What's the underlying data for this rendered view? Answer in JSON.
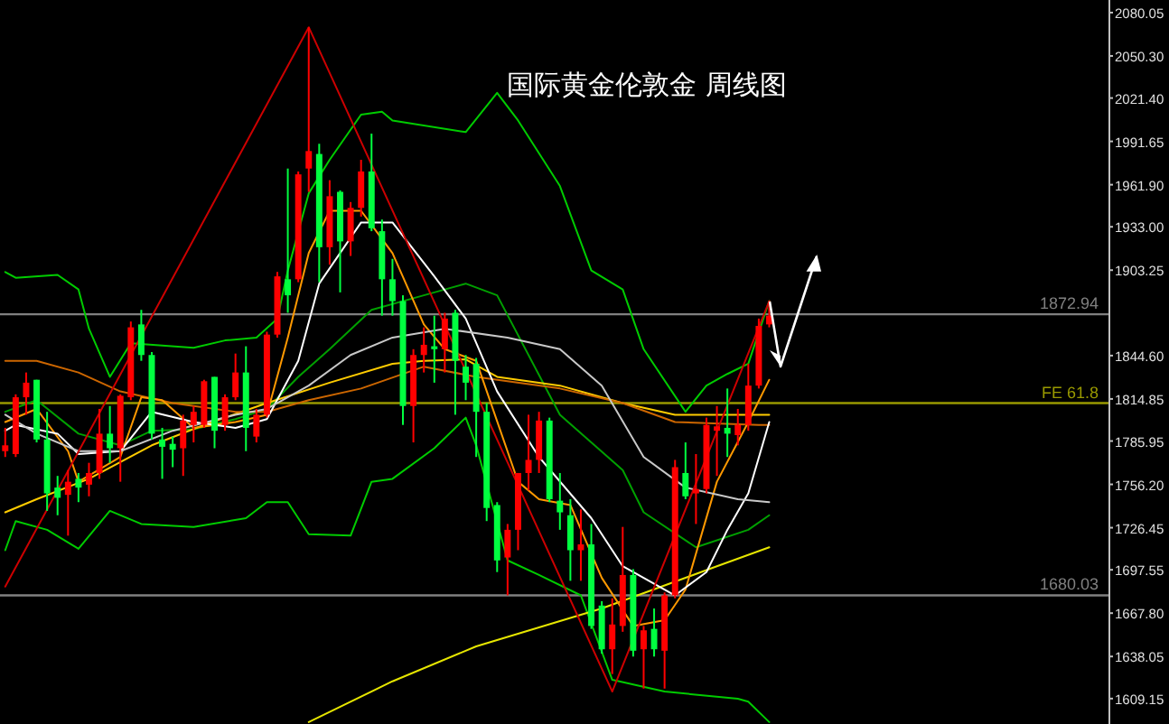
{
  "chart_data": {
    "type": "candlestick",
    "title": "国际黄金伦敦金  周线图",
    "categories": [
      null,
      null,
      null,
      null,
      null,
      null,
      null,
      null,
      null,
      null,
      null,
      null,
      null,
      null,
      null,
      null,
      null,
      null,
      null,
      null,
      null,
      null,
      null,
      null,
      null,
      null,
      null,
      null,
      null,
      null,
      null,
      null,
      null,
      null,
      null,
      null,
      null,
      null,
      null,
      null,
      null,
      null,
      null,
      null,
      null,
      null,
      null,
      null,
      null,
      null,
      null,
      null,
      null,
      null,
      null,
      null,
      null,
      null,
      null,
      null,
      null,
      null,
      null,
      null,
      null,
      null,
      null,
      null,
      null,
      null,
      null,
      null,
      null,
      null,
      null,
      null,
      null,
      null,
      null,
      null,
      null,
      null,
      null,
      null,
      null,
      null,
      null,
      null,
      null,
      null,
      null,
      null,
      null,
      null,
      null,
      null,
      null,
      null,
      null,
      null,
      null,
      null,
      null,
      null,
      null,
      null
    ],
    "ohlc": [
      [
        1779,
        1795,
        1775,
        1783
      ],
      [
        1777,
        1818,
        1775,
        1816
      ],
      [
        1816,
        1833,
        1804,
        1826
      ],
      [
        1828,
        1828,
        1785,
        1787
      ],
      [
        1787,
        1806,
        1738,
        1750
      ],
      [
        1754,
        1762,
        1735,
        1747
      ],
      [
        1749,
        1766,
        1721,
        1758
      ],
      [
        1760,
        1764,
        1744,
        1754
      ],
      [
        1756,
        1771,
        1748,
        1764
      ],
      [
        1764,
        1808,
        1760,
        1791
      ],
      [
        1791,
        1810,
        1771,
        1781
      ],
      [
        1781,
        1818,
        1758,
        1817
      ],
      [
        1816,
        1868,
        1814,
        1864
      ],
      [
        1866,
        1876,
        1841,
        1845
      ],
      [
        1845,
        1847,
        1787,
        1791
      ],
      [
        1787,
        1795,
        1760,
        1782
      ],
      [
        1784,
        1789,
        1768,
        1780
      ],
      [
        1781,
        1804,
        1762,
        1800
      ],
      [
        1797,
        1810,
        1785,
        1806
      ],
      [
        1797,
        1828,
        1795,
        1827
      ],
      [
        1830,
        1830,
        1781,
        1793
      ],
      [
        1797,
        1818,
        1793,
        1816
      ],
      [
        1816,
        1846,
        1814,
        1833
      ],
      [
        1833,
        1851,
        1779,
        1795
      ],
      [
        1789,
        1808,
        1785,
        1804
      ],
      [
        1804,
        1861,
        1802,
        1859
      ],
      [
        1859,
        1902,
        1857,
        1899
      ],
      [
        1897,
        1973,
        1874,
        1886
      ],
      [
        1897,
        1971,
        1895,
        1969
      ],
      [
        1973,
        2070,
        1957,
        1985
      ],
      [
        1983,
        1990,
        1895,
        1919
      ],
      [
        1919,
        1965,
        1907,
        1954
      ],
      [
        1957,
        1958,
        1888,
        1923
      ],
      [
        1923,
        1950,
        1913,
        1946
      ],
      [
        1946,
        1979,
        1940,
        1971
      ],
      [
        1971,
        1997,
        1930,
        1932
      ],
      [
        1930,
        1938,
        1872,
        1897
      ],
      [
        1897,
        1911,
        1872,
        1882
      ],
      [
        1882,
        1886,
        1797,
        1810
      ],
      [
        1810,
        1849,
        1785,
        1845
      ],
      [
        1845,
        1864,
        1833,
        1852
      ],
      [
        1851,
        1872,
        1826,
        1849
      ],
      [
        1849,
        1874,
        1833,
        1870
      ],
      [
        1874,
        1876,
        1804,
        1841
      ],
      [
        1837,
        1845,
        1814,
        1826
      ],
      [
        1839,
        1843,
        1775,
        1806
      ],
      [
        1806,
        1812,
        1731,
        1740
      ],
      [
        1742,
        1744,
        1696,
        1704
      ],
      [
        1706,
        1729,
        1680,
        1725
      ],
      [
        1725,
        1764,
        1711,
        1764
      ],
      [
        1764,
        1804,
        1752,
        1773
      ],
      [
        1773,
        1806,
        1764,
        1800
      ],
      [
        1800,
        1802,
        1744,
        1746
      ],
      [
        1745,
        1764,
        1725,
        1737
      ],
      [
        1735,
        1746,
        1690,
        1711
      ],
      [
        1711,
        1739,
        1690,
        1715
      ],
      [
        1715,
        1729,
        1657,
        1659
      ],
      [
        1673,
        1676,
        1640,
        1643
      ],
      [
        1643,
        1678,
        1626,
        1660
      ],
      [
        1659,
        1727,
        1655,
        1694
      ],
      [
        1694,
        1698,
        1638,
        1642
      ],
      [
        1643,
        1659,
        1616,
        1656
      ],
      [
        1657,
        1671,
        1638,
        1643
      ],
      [
        1642,
        1682,
        1616,
        1680
      ],
      [
        1680,
        1773,
        1678,
        1768
      ],
      [
        1764,
        1785,
        1746,
        1748
      ],
      [
        1750,
        1777,
        1729,
        1753
      ],
      [
        1753,
        1802,
        1750,
        1797
      ],
      [
        1793,
        1810,
        1762,
        1796
      ],
      [
        1795,
        1822,
        1775,
        1791
      ],
      [
        1790,
        1808,
        1783,
        1797
      ],
      [
        1797,
        1839,
        1793,
        1824
      ],
      [
        1824,
        1870,
        1822,
        1865
      ],
      [
        1866,
        1882,
        1864,
        1872
      ],
      null,
      null,
      null,
      null,
      null,
      null,
      null,
      null,
      null,
      null,
      null,
      null,
      null,
      null,
      null,
      null,
      null,
      null,
      null,
      null,
      null,
      null,
      null,
      null,
      null,
      null,
      null,
      null,
      null,
      null,
      null,
      null
    ],
    "colors": [
      "#ff0000",
      "#ff0000",
      "#ff0000",
      "#00ff40",
      "#00ff40",
      "#00ff40",
      "#ff0000",
      "#00ff40",
      "#ff0000",
      "#ff0000",
      "#00ff40",
      "#ff0000",
      "#ff0000",
      "#00ff40",
      "#00ff40",
      "#00ff40",
      "#00ff40",
      "#ff0000",
      "#ff0000",
      "#ff0000",
      "#00ff40",
      "#ff0000",
      "#ff0000",
      "#00ff40",
      "#ff0000",
      "#ff0000",
      "#ff0000",
      "#00ff40",
      "#ff0000",
      "#ff0000",
      "#00ff40",
      "#ff0000",
      "#00ff40",
      "#ff0000",
      "#ff0000",
      "#00ff40",
      "#00ff40",
      "#00ff40",
      "#00ff40",
      "#ff0000",
      "#ff0000",
      "#00ff40",
      "#ff0000",
      "#00ff40",
      "#00ff40",
      "#00ff40",
      "#00ff40",
      "#00ff40",
      "#ff0000",
      "#ff0000",
      "#ff0000",
      "#ff0000",
      "#00ff40",
      "#00ff40",
      "#00ff40",
      "#ff0000",
      "#00ff40",
      "#00ff40",
      "#ff0000",
      "#ff0000",
      "#00ff40",
      "#ff0000",
      "#00ff40",
      "#ff0000",
      "#ff0000",
      "#00ff40",
      "#ff0000",
      "#ff0000",
      "#ff0000",
      "#00ff40",
      "#ff0000",
      "#ff0000",
      "#ff0000",
      "#ff0000",
      null,
      null,
      null,
      null,
      null,
      null,
      null,
      null,
      null,
      null,
      null,
      null,
      null,
      null,
      null,
      null,
      null,
      null,
      null,
      null,
      null,
      null,
      null,
      null,
      null,
      null,
      null,
      null,
      null,
      null,
      null,
      null
    ],
    "ylim": [
      1591.7,
      2088.7
    ],
    "yticks": [
      {
        "value": 2080.05,
        "label": "2080.05"
      },
      {
        "value": 2050.3,
        "label": "2050.30"
      },
      {
        "value": 2021.4,
        "label": "2021.40"
      },
      {
        "value": 1991.65,
        "label": "1991.65"
      },
      {
        "value": 1961.9,
        "label": "1961.90"
      },
      {
        "value": 1933,
        "label": "1933.00"
      },
      {
        "value": 1903.25,
        "label": "1903.25"
      },
      {
        "value": 1844.6,
        "label": "1844.60"
      },
      {
        "value": 1814.85,
        "label": "1814.85"
      },
      {
        "value": 1785.95,
        "label": "1785.95"
      },
      {
        "value": 1756.2,
        "label": "1756.20"
      },
      {
        "value": 1726.45,
        "label": "1726.45"
      },
      {
        "value": 1697.55,
        "label": "1697.55"
      },
      {
        "value": 1667.8,
        "label": "1667.80"
      },
      {
        "value": 1638.05,
        "label": "1638.05"
      },
      {
        "value": 1609.15,
        "label": "1609.15"
      }
    ],
    "ref_lines": [
      {
        "axis": "y",
        "value": 1872.94,
        "label": "1872.94",
        "color": "#808080"
      },
      {
        "axis": "y",
        "value": 1812,
        "label": "FE 61.8",
        "color": "#999900"
      },
      {
        "axis": "y",
        "value": 1680.03,
        "label": "1680.03",
        "color": "#808080"
      }
    ],
    "series": [
      {
        "type": "line",
        "color": "#00cc00",
        "values": [
          1902,
          1898,
          null,
          null,
          null,
          1900,
          null,
          1890,
          1863,
          null,
          1830,
          null,
          1853,
          null,
          null,
          null,
          null,
          null,
          1850,
          null,
          null,
          1855,
          null,
          null,
          1857,
          null,
          1870,
          1903,
          null,
          1956,
          null,
          1979,
          null,
          null,
          2010,
          null,
          2012,
          2006,
          null,
          null,
          null,
          null,
          null,
          null,
          1998,
          null,
          null,
          2025,
          null,
          2006,
          null,
          null,
          null,
          1961,
          null,
          null,
          1903,
          null,
          null,
          1890,
          null,
          1849,
          null,
          null,
          null,
          1806,
          null,
          1824,
          null,
          1832,
          null,
          1839,
          null,
          1882,
          null,
          null,
          null,
          null,
          null,
          null,
          null,
          null,
          null,
          null,
          null,
          null,
          null,
          null,
          null,
          null,
          null,
          null,
          null,
          null,
          null,
          null,
          null,
          null,
          null,
          null,
          null,
          null,
          null,
          null,
          null,
          null
        ]
      },
      {
        "type": "line",
        "color": "#00cc00",
        "values": [
          1711,
          1731,
          null,
          null,
          1725,
          null,
          null,
          1712,
          null,
          null,
          1738,
          null,
          null,
          1729,
          null,
          null,
          null,
          null,
          1727,
          null,
          null,
          null,
          null,
          1733,
          null,
          1744,
          null,
          1744,
          null,
          1722,
          null,
          null,
          null,
          1721,
          null,
          1758,
          null,
          1760,
          null,
          null,
          null,
          1781,
          null,
          null,
          1802,
          1783,
          null,
          null,
          1704,
          null,
          null,
          1694,
          null,
          null,
          null,
          1680,
          null,
          null,
          1622,
          null,
          null,
          null,
          null,
          1614,
          null,
          null,
          null,
          null,
          null,
          null,
          1609,
          1607,
          null,
          1593,
          null,
          null,
          null,
          null,
          null,
          null,
          null,
          null,
          null,
          null,
          null,
          null,
          null,
          null,
          null,
          null,
          null,
          null,
          null,
          null,
          null,
          null,
          null,
          null,
          null,
          null,
          null,
          null,
          null,
          null,
          null,
          null
        ]
      },
      {
        "type": "line",
        "color": "#00a000",
        "values": [
          1806,
          null,
          null,
          1814,
          null,
          null,
          null,
          1791,
          null,
          null,
          null,
          1783,
          null,
          null,
          1793,
          null,
          null,
          null,
          1794,
          null,
          null,
          null,
          1801,
          null,
          null,
          1808,
          null,
          null,
          1830,
          null,
          null,
          1849,
          null,
          null,
          null,
          1876,
          null,
          null,
          null,
          null,
          1886,
          null,
          null,
          null,
          1894,
          null,
          null,
          1886,
          null,
          null,
          null,
          null,
          null,
          1804,
          null,
          null,
          null,
          null,
          null,
          1766,
          null,
          1737,
          null,
          null,
          null,
          null,
          1713,
          null,
          null,
          null,
          null,
          1725,
          null,
          1735,
          null,
          null,
          null,
          null,
          null,
          null,
          null,
          null,
          null,
          null,
          null,
          null,
          null,
          null,
          null,
          null,
          null,
          null,
          null,
          null,
          null,
          null,
          null,
          null,
          null,
          null,
          null,
          null,
          null,
          null,
          null,
          null
        ]
      },
      {
        "type": "line",
        "color": "#e6e600",
        "values": [
          null,
          null,
          null,
          null,
          null,
          null,
          null,
          null,
          null,
          null,
          null,
          null,
          null,
          null,
          null,
          null,
          null,
          null,
          null,
          null,
          null,
          null,
          null,
          null,
          null,
          null,
          null,
          null,
          null,
          1593,
          null,
          null,
          null,
          null,
          null,
          null,
          null,
          1621,
          null,
          null,
          null,
          null,
          null,
          null,
          null,
          1645,
          null,
          null,
          null,
          null,
          null,
          null,
          null,
          null,
          null,
          null,
          null,
          1671,
          null,
          null,
          null,
          null,
          null,
          null,
          null,
          null,
          null,
          null,
          1700,
          null,
          null,
          null,
          null,
          1713,
          null,
          null,
          null,
          null,
          null,
          null,
          null,
          null,
          null,
          null,
          null,
          null,
          null,
          null,
          null,
          null,
          null,
          null,
          null,
          null,
          null,
          null,
          null,
          null,
          null,
          null,
          null,
          null,
          null,
          null,
          null,
          null
        ]
      },
      {
        "type": "line",
        "color": "#ffcc00",
        "values": [
          1737,
          null,
          null,
          1746,
          null,
          null,
          null,
          null,
          1760,
          null,
          null,
          null,
          null,
          null,
          1783,
          null,
          null,
          null,
          null,
          1797,
          null,
          null,
          null,
          null,
          null,
          1812,
          null,
          null,
          null,
          null,
          null,
          1826,
          null,
          null,
          null,
          null,
          null,
          1839,
          null,
          null,
          1841,
          null,
          null,
          null,
          1842,
          null,
          null,
          1830,
          null,
          null,
          null,
          null,
          null,
          1824,
          null,
          null,
          null,
          null,
          null,
          1812,
          null,
          null,
          null,
          null,
          1804,
          null,
          null,
          null,
          null,
          null,
          null,
          null,
          1804,
          1804,
          null,
          null,
          null,
          null,
          null,
          null,
          null,
          null,
          null,
          null,
          null,
          null,
          null,
          null,
          null,
          null,
          null,
          null,
          null,
          null,
          null,
          null,
          null,
          null,
          null,
          null,
          null,
          null,
          null,
          null,
          null,
          null
        ]
      },
      {
        "type": "line",
        "color": "#cc6600",
        "values": [
          1841,
          null,
          null,
          1841,
          null,
          null,
          null,
          1833,
          null,
          null,
          null,
          1820,
          null,
          null,
          null,
          null,
          1812,
          null,
          null,
          null,
          null,
          null,
          1806,
          null,
          null,
          1806,
          null,
          null,
          null,
          1814,
          null,
          null,
          null,
          null,
          1822,
          null,
          null,
          null,
          null,
          null,
          1837,
          null,
          null,
          null,
          null,
          1830,
          null,
          null,
          null,
          null,
          null,
          null,
          null,
          1822,
          null,
          null,
          null,
          null,
          null,
          1812,
          null,
          null,
          null,
          null,
          1799,
          null,
          null,
          null,
          null,
          null,
          null,
          null,
          1797,
          1797,
          null,
          null,
          null,
          null,
          null,
          null,
          null,
          null,
          null,
          null,
          null,
          null,
          null,
          null,
          null,
          null,
          null,
          null,
          null,
          null,
          null,
          null,
          null,
          null,
          null,
          null,
          null,
          null,
          null,
          null,
          null,
          null
        ]
      },
      {
        "type": "line",
        "color": "#ff9900",
        "values": [
          1799,
          null,
          null,
          1808,
          null,
          null,
          1779,
          1758,
          null,
          null,
          null,
          1775,
          null,
          1816,
          null,
          1814,
          null,
          null,
          1795,
          null,
          null,
          null,
          1799,
          null,
          null,
          1804,
          null,
          1857,
          null,
          1915,
          null,
          1944,
          null,
          null,
          1944,
          null,
          null,
          1915,
          null,
          null,
          1866,
          null,
          1849,
          null,
          null,
          1841,
          null,
          null,
          null,
          1758,
          null,
          1746,
          null,
          null,
          1742,
          null,
          null,
          1692,
          null,
          null,
          1659,
          null,
          null,
          1663,
          null,
          1684,
          null,
          null,
          1758,
          null,
          null,
          1799,
          null,
          1828,
          null,
          null,
          null,
          null,
          null,
          null,
          null,
          null,
          null,
          null,
          null,
          null,
          null,
          null,
          null,
          null,
          null,
          null,
          null,
          null,
          null,
          null,
          null,
          null,
          null,
          null,
          null,
          null,
          null,
          null,
          null,
          null
        ]
      },
      {
        "type": "line",
        "color": "#ffffff",
        "values": [
          1793,
          1797,
          null,
          null,
          null,
          1791,
          null,
          1777,
          null,
          null,
          null,
          1779,
          null,
          null,
          1806,
          null,
          null,
          null,
          1799,
          null,
          null,
          null,
          1795,
          null,
          null,
          1801,
          null,
          null,
          1841,
          null,
          1894,
          null,
          null,
          null,
          1936,
          null,
          null,
          1936,
          null,
          null,
          null,
          1899,
          null,
          null,
          1870,
          null,
          null,
          1820,
          null,
          null,
          null,
          1775,
          null,
          null,
          null,
          null,
          1733,
          null,
          null,
          1700,
          null,
          null,
          null,
          null,
          1680,
          null,
          null,
          1696,
          null,
          1725,
          null,
          1750,
          null,
          1799,
          null,
          null,
          null,
          null,
          null,
          null,
          null,
          null,
          null,
          null,
          null,
          null,
          null,
          null,
          null,
          null,
          null,
          null,
          null,
          null,
          null,
          null,
          null,
          null,
          null,
          null,
          null,
          null,
          null,
          null,
          null,
          null
        ]
      },
      {
        "type": "line",
        "color": "#c8c8c8",
        "values": [
          1804,
          null,
          null,
          1791,
          null,
          null,
          null,
          1779,
          null,
          null,
          null,
          1779,
          null,
          null,
          null,
          null,
          1793,
          null,
          null,
          null,
          null,
          null,
          1804,
          null,
          null,
          1808,
          null,
          null,
          null,
          1824,
          null,
          null,
          null,
          1845,
          null,
          null,
          null,
          1857,
          null,
          null,
          null,
          null,
          1863,
          null,
          null,
          null,
          null,
          null,
          1857,
          null,
          null,
          null,
          null,
          1849,
          null,
          null,
          null,
          1824,
          null,
          null,
          null,
          1775,
          null,
          null,
          null,
          1754,
          null,
          null,
          null,
          null,
          1746,
          null,
          null,
          1744,
          null,
          null,
          null,
          null,
          null,
          null,
          null,
          null,
          null,
          null,
          null,
          null,
          null,
          null,
          null,
          null,
          null,
          null,
          null,
          null,
          null,
          null,
          null,
          null,
          null,
          null,
          null,
          null,
          null,
          null,
          null,
          null
        ]
      },
      {
        "type": "line",
        "color": "#cc0000",
        "values": [
          1686,
          null,
          null,
          null,
          null,
          null,
          null,
          null,
          null,
          null,
          null,
          null,
          null,
          null,
          null,
          null,
          null,
          null,
          null,
          null,
          null,
          null,
          null,
          null,
          null,
          null,
          null,
          null,
          null,
          2070,
          null,
          null,
          null,
          null,
          null,
          null,
          null,
          null,
          null,
          null,
          null,
          null,
          null,
          null,
          null,
          null,
          null,
          null,
          null,
          null,
          null,
          null,
          null,
          null,
          null,
          null,
          null,
          null,
          1614,
          null,
          null,
          null,
          null,
          null,
          null,
          null,
          null,
          null,
          null,
          null,
          null,
          null,
          null,
          1882,
          null,
          null,
          null,
          null,
          null,
          null,
          null,
          null,
          null,
          null,
          null,
          null,
          null,
          null,
          null,
          null,
          null,
          null,
          null,
          null,
          null,
          null,
          null,
          null,
          null,
          null,
          null,
          null,
          null,
          null,
          null,
          null
        ]
      }
    ]
  }
}
